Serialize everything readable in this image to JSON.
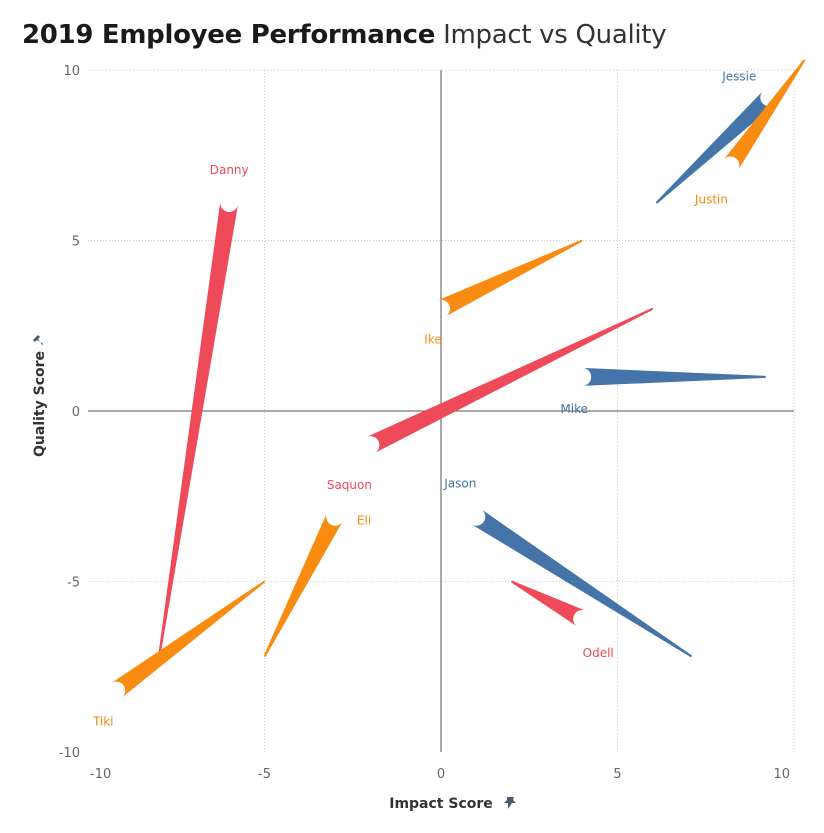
{
  "title": {
    "bold": "2019 Employee Performance",
    "light": "Impact vs Quality"
  },
  "colors": {
    "blue": "#4575a8",
    "orange": "#f98b10",
    "red": "#ee4a59",
    "grid": "#cccccc",
    "zero_line": "#555555"
  },
  "chart_data": {
    "type": "scatter",
    "subtype": "comet / trajectory",
    "title": "2019 Employee Performance Impact vs Quality",
    "xlabel": "Impact Score",
    "ylabel": "Quality Score",
    "xlim": [
      -10,
      10
    ],
    "ylim": [
      -10,
      10
    ],
    "x_ticks": [
      "-10",
      "-5",
      "0",
      "5",
      "10"
    ],
    "y_ticks": [
      "10",
      "5",
      "0",
      "-5",
      "-10"
    ],
    "x_tick_values": [
      -10,
      -5,
      0,
      5,
      10
    ],
    "y_tick_values": [
      10,
      5,
      0,
      -5,
      -10
    ],
    "grid": true,
    "employees": [
      {
        "name": "Jessie",
        "color": "blue",
        "from": [
          6.1,
          6.1
        ],
        "to": [
          9.3,
          9.2
        ]
      },
      {
        "name": "Justin",
        "color": "orange",
        "from": [
          10.3,
          10.3
        ],
        "to": [
          8.2,
          7.2
        ]
      },
      {
        "name": "Danny",
        "color": "red",
        "from": [
          -8.0,
          -7.3
        ],
        "to": [
          -6.0,
          6.1
        ]
      },
      {
        "name": "Ike",
        "color": "orange",
        "from": [
          4.0,
          5.0
        ],
        "to": [
          0.0,
          3.0
        ]
      },
      {
        "name": "Mike",
        "color": "blue",
        "from": [
          9.2,
          1.0
        ],
        "to": [
          4.0,
          1.0
        ]
      },
      {
        "name": "Saquon",
        "color": "red",
        "from": [
          6.0,
          3.0
        ],
        "to": [
          -2.0,
          -1.0
        ]
      },
      {
        "name": "Eli",
        "color": "orange",
        "from": [
          -5.0,
          -7.2
        ],
        "to": [
          -3.0,
          -3.1
        ]
      },
      {
        "name": "Jason",
        "color": "blue",
        "from": [
          7.1,
          -7.2
        ],
        "to": [
          1.0,
          -3.1
        ]
      },
      {
        "name": "Odell",
        "color": "red",
        "from": [
          2.0,
          -5.0
        ],
        "to": [
          4.0,
          -6.1
        ]
      },
      {
        "name": "Tiki",
        "color": "orange",
        "from": [
          -5.0,
          -5.0
        ],
        "to": [
          -9.2,
          -8.2
        ]
      }
    ]
  }
}
